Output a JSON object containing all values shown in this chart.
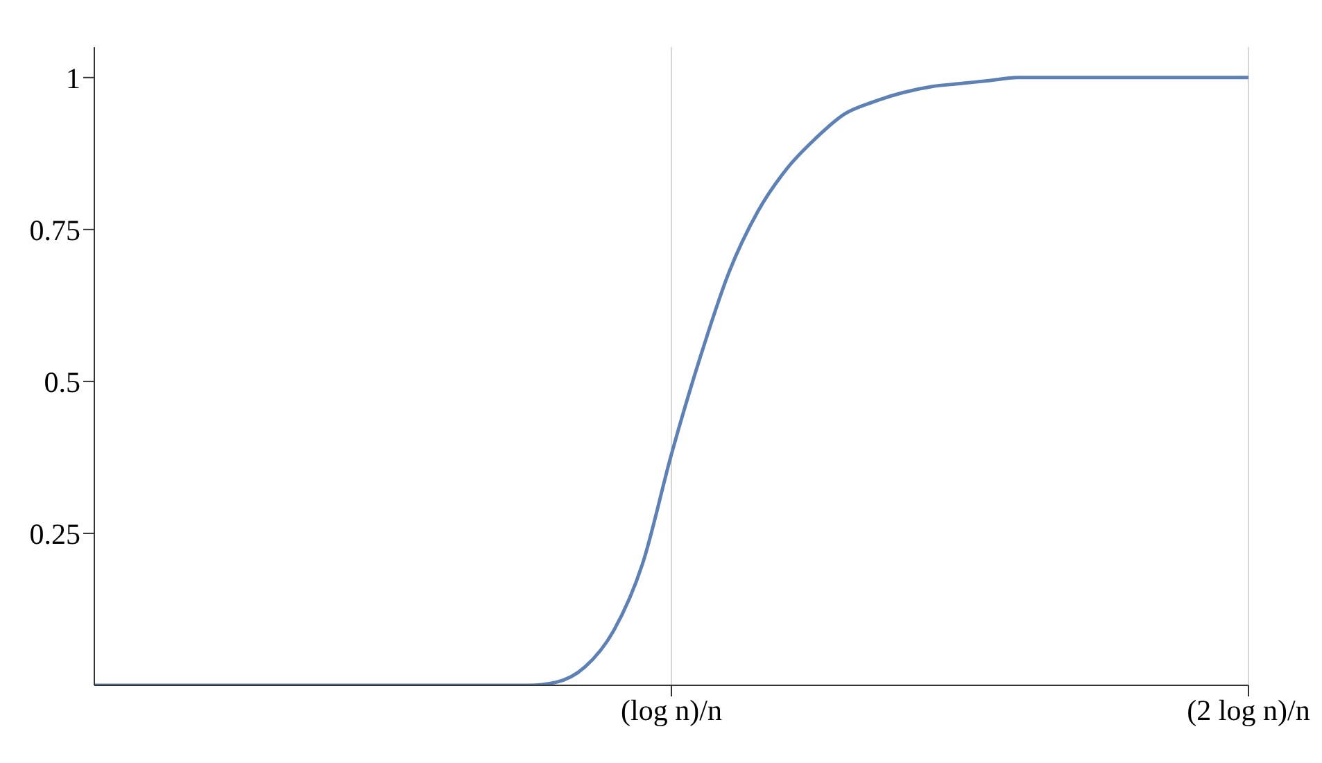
{
  "chart_data": {
    "type": "line",
    "categories": [
      null,
      null,
      null,
      null,
      null,
      null,
      null,
      null,
      null,
      null,
      null,
      null,
      null,
      null,
      null,
      null,
      null,
      null,
      null,
      null,
      "(log n)/n",
      null,
      null,
      null,
      null,
      null,
      null,
      null,
      null,
      null,
      null,
      null,
      null,
      null,
      null,
      null,
      null,
      null,
      null,
      null,
      "(2 log n)/n"
    ],
    "series": [
      {
        "color": "#5e81b5",
        "values": [
          0,
          0,
          0,
          0,
          0,
          0,
          0,
          0,
          0,
          0,
          0,
          0,
          0,
          0,
          0,
          0,
          0.005,
          0.03,
          0.09,
          0.2,
          0.38,
          0.54,
          0.68,
          0.78,
          0.85,
          0.9,
          0.94,
          0.96,
          0.975,
          0.985,
          0.99,
          0.995,
          1,
          1,
          1,
          1,
          1,
          1,
          1,
          1,
          1
        ]
      }
    ],
    "ylim": [
      0,
      1.05
    ],
    "yticks": [
      0.25,
      0.5,
      0.75,
      1
    ],
    "grid": "x",
    "marker": "none",
    "line_style": "solid"
  }
}
